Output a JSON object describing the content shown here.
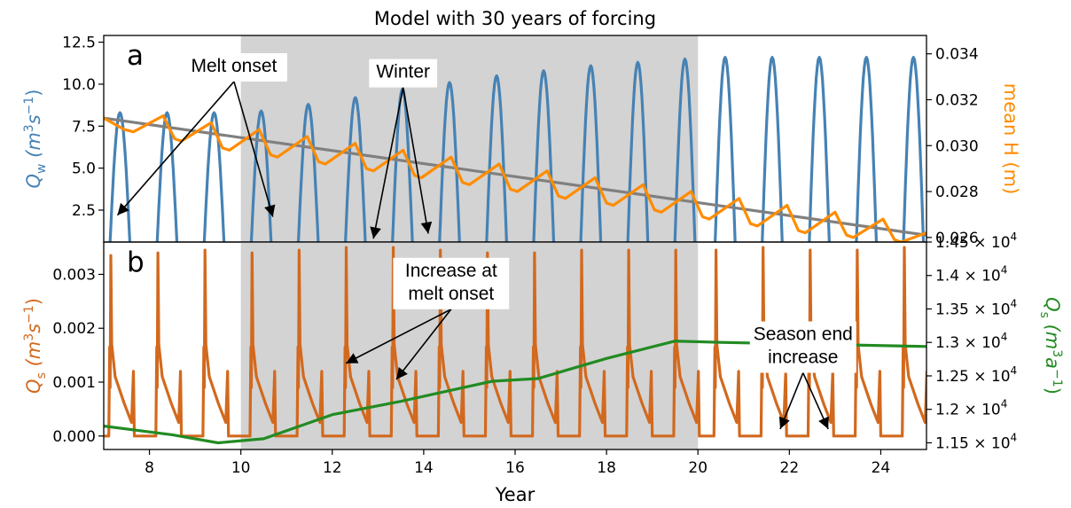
{
  "figure": {
    "title": "Model with 30 years of forcing",
    "xlabel": "Year"
  },
  "chart_data": [
    {
      "panel_label": "a",
      "type": "line",
      "xlim": [
        7,
        25
      ],
      "x_ticks": [
        "8",
        "10",
        "12",
        "14",
        "16",
        "18",
        "20",
        "22",
        "24"
      ],
      "shaded_interval": [
        10,
        20
      ],
      "ylabel_left_parts": [
        "Q",
        "w",
        " (m",
        "3",
        "s",
        "−1",
        ")"
      ],
      "ylim_left": [
        0.6,
        12.9
      ],
      "y_ticks_left": [
        "2.5",
        "5.0",
        "7.5",
        "10.0",
        "12.5"
      ],
      "ylabel_right": "mean H (m)",
      "ylim_right": [
        0.0258,
        0.0348
      ],
      "y_ticks_right": [
        "0.026",
        "0.028",
        "0.030",
        "0.032",
        "0.034"
      ],
      "series": [
        {
          "axis": "left",
          "color": "#4682b4",
          "pattern": "seasonal_pulses",
          "pulse_starts": [
            7.13,
            8.16,
            9.19,
            10.22,
            11.25,
            12.28,
            13.31,
            14.34,
            15.37,
            16.4,
            17.43,
            18.46,
            19.49,
            20.37,
            21.4,
            22.43,
            23.46,
            24.49
          ],
          "pulse_duration": 0.45,
          "peaks": [
            8.3,
            8.3,
            8.3,
            8.4,
            8.8,
            9.2,
            9.7,
            10.1,
            10.5,
            10.8,
            11.1,
            11.3,
            11.5,
            11.6,
            11.6,
            11.6,
            11.6,
            11.6
          ]
        },
        {
          "axis": "right",
          "color": "#808080",
          "x": [
            7,
            25
          ],
          "y": [
            0.0312,
            0.0261
          ]
        },
        {
          "axis": "right",
          "color": "#ff8c00",
          "pattern": "sawtooth",
          "x": [
            7.0,
            7.45,
            7.65,
            8.3,
            8.55,
            8.7,
            9.35,
            9.6,
            9.75,
            10.4,
            10.65,
            10.8,
            11.45,
            11.7,
            11.85,
            12.5,
            12.75,
            12.9,
            13.55,
            13.8,
            13.95,
            14.6,
            14.85,
            15.0,
            15.65,
            15.9,
            16.05,
            16.7,
            16.95,
            17.1,
            17.75,
            18.0,
            18.15,
            18.8,
            19.05,
            19.2,
            19.85,
            20.1,
            20.25,
            20.9,
            21.15,
            21.3,
            21.95,
            22.2,
            22.35,
            23.0,
            23.25,
            23.4,
            24.05,
            24.3,
            24.45,
            25.0
          ],
          "y": [
            0.0312,
            0.0307,
            0.0306,
            0.0313,
            0.0303,
            0.0302,
            0.031,
            0.0299,
            0.0298,
            0.0307,
            0.0296,
            0.0295,
            0.0304,
            0.0293,
            0.0292,
            0.0301,
            0.029,
            0.0289,
            0.0298,
            0.0287,
            0.0286,
            0.0295,
            0.0284,
            0.0283,
            0.0292,
            0.0281,
            0.028,
            0.0289,
            0.0278,
            0.0277,
            0.0286,
            0.0275,
            0.0274,
            0.0283,
            0.0272,
            0.0271,
            0.028,
            0.0269,
            0.0268,
            0.0277,
            0.0266,
            0.0265,
            0.0274,
            0.0263,
            0.0262,
            0.0271,
            0.0261,
            0.026,
            0.0268,
            0.0259,
            0.0258,
            0.0262
          ]
        }
      ],
      "annotations": [
        {
          "text": "Melt onset",
          "at": [
            9.85,
            11.0
          ],
          "arrows_to": [
            [
              7.3,
              2.2
            ],
            [
              10.7,
              2.1
            ]
          ]
        },
        {
          "text": "Winter",
          "at": [
            13.55,
            10.65
          ],
          "arrows_to": [
            [
              12.9,
              0.8
            ],
            [
              14.1,
              1.1
            ]
          ]
        }
      ]
    },
    {
      "panel_label": "b",
      "type": "line",
      "xlim": [
        7,
        25
      ],
      "x_ticks": [
        "8",
        "10",
        "12",
        "14",
        "16",
        "18",
        "20",
        "22",
        "24"
      ],
      "shaded_interval": [
        10,
        20
      ],
      "ylabel_left_parts": [
        "Q",
        "s",
        " (m",
        "3",
        "s",
        "−1",
        ")"
      ],
      "ylim_left": [
        -0.00025,
        0.0036
      ],
      "y_ticks_left": [
        "0.000",
        "0.001",
        "0.002",
        "0.003"
      ],
      "ylabel_right_parts": [
        "Q",
        "s",
        " (m",
        "3",
        "a",
        "−1",
        ")"
      ],
      "ylim_right": [
        11400,
        14500
      ],
      "y_ticks_right": [
        {
          "m": "1.15",
          "e": "4"
        },
        {
          "m": "1.2",
          "e": "4"
        },
        {
          "m": "1.25",
          "e": "4"
        },
        {
          "m": "1.3",
          "e": "4"
        },
        {
          "m": "1.35",
          "e": "4"
        },
        {
          "m": "1.4",
          "e": "4"
        },
        {
          "m": "1.45",
          "e": "4"
        }
      ],
      "series": [
        {
          "axis": "left",
          "color": "#d2691e",
          "pattern": "melt_spikes",
          "spike_starts": [
            7.13,
            8.16,
            9.19,
            10.22,
            11.25,
            12.28,
            13.31,
            14.34,
            15.37,
            16.4,
            17.43,
            18.46,
            19.49,
            20.37,
            21.4,
            22.43,
            23.46,
            24.49
          ],
          "peaks": [
            0.00335,
            0.0034,
            0.00345,
            0.0034,
            0.00345,
            0.0035,
            0.0035,
            0.00345,
            0.0034,
            0.0034,
            0.00345,
            0.00345,
            0.00345,
            0.00345,
            0.0035,
            0.00345,
            0.00345,
            0.0035
          ]
        },
        {
          "axis": "right",
          "color": "#228b22",
          "x": [
            7.0,
            8.5,
            9.5,
            10.5,
            12.0,
            13.5,
            15.5,
            16.5,
            18.0,
            19.5,
            20.5,
            25.0
          ],
          "y": [
            11750,
            11620,
            11500,
            11560,
            11920,
            12120,
            12420,
            12460,
            12760,
            13020,
            13000,
            12940
          ]
        }
      ],
      "annotations": [
        {
          "text": "Increase at\nmelt onset",
          "at": [
            14.6,
            0.00283
          ],
          "arrows_to": [
            [
              12.3,
              0.00135
            ],
            [
              13.4,
              0.00105
            ]
          ]
        },
        {
          "text": "Season end\nincrease",
          "at": [
            22.3,
            0.00165
          ],
          "arrows_to": [
            [
              21.8,
              0.00013
            ],
            [
              22.85,
              0.00013
            ]
          ]
        }
      ]
    }
  ]
}
